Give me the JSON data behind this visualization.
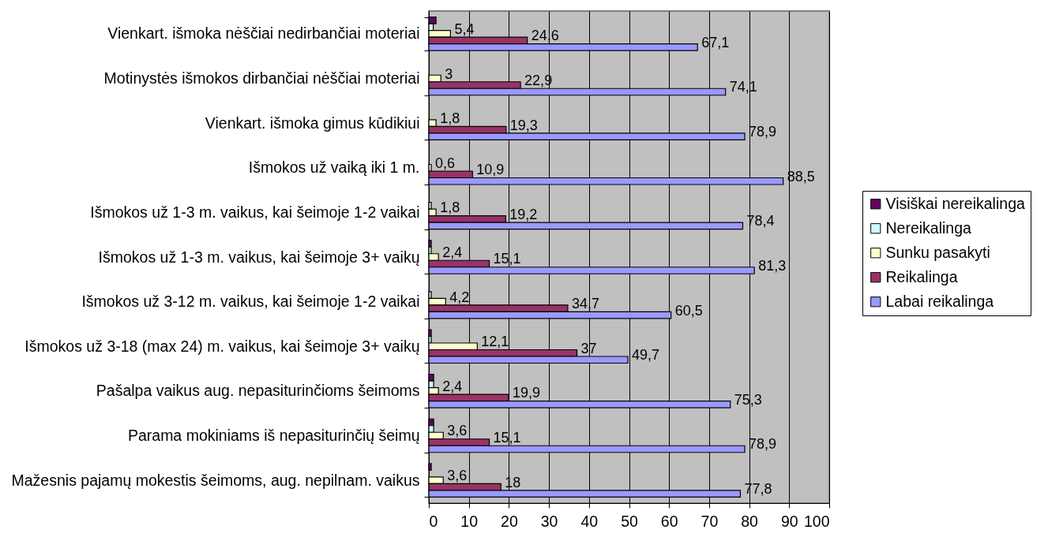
{
  "chart_data": {
    "type": "bar",
    "orientation": "horizontal",
    "categories": [
      "Vienkart. išmoka nėščiai nedirbančiai moteriai",
      "Motinystės išmokos dirbančiai nėščiai moteriai",
      "Vienkart. išmoka gimus kūdikiui",
      "Išmokos už vaiką iki 1 m.",
      "Išmokos už 1-3 m. vaikus, kai šeimoje 1-2 vaikai",
      "Išmokos už 1-3 m. vaikus, kai šeimoje 3+ vaikų",
      "Išmokos už 3-12 m. vaikus, kai šeimoje 1-2 vaikai",
      "Išmokos už 3-18 (max 24) m. vaikus, kai šeimoje 3+ vaikų",
      "Pašalpa vaikus aug. nepasiturinčioms šeimoms",
      "Parama mokiniams iš nepasiturinčių šeimų",
      "Mažesnis pajamų mokestis šeimoms, aug. nepilnam. vaikus"
    ],
    "series": [
      {
        "name": "Visiškai nereikalinga",
        "color": "#660066",
        "values": [
          1.8,
          0,
          0,
          0,
          0,
          0.6,
          0,
          0.6,
          1.2,
          1.2,
          0.6
        ]
      },
      {
        "name": "Nereikalinga",
        "color": "#ccffff",
        "values": [
          1.1,
          0,
          0,
          0,
          0.6,
          0.6,
          0.6,
          0.6,
          1.2,
          1.2,
          0
        ]
      },
      {
        "name": "Sunku pasakyti",
        "color": "#ffffcc",
        "values": [
          5.4,
          3,
          1.8,
          0.6,
          1.8,
          2.4,
          4.2,
          12.1,
          2.4,
          3.6,
          3.6
        ],
        "value_labels": [
          "5,4",
          "3",
          "1,8",
          "0,6",
          "1,8",
          "2,4",
          "4,2",
          "12,1",
          "2,4",
          "3,6",
          "3,6"
        ]
      },
      {
        "name": "Reikalinga",
        "color": "#993366",
        "values": [
          24.6,
          22.9,
          19.3,
          10.9,
          19.2,
          15.1,
          34.7,
          37,
          19.9,
          15.1,
          18
        ],
        "value_labels": [
          "24,6",
          "22,9",
          "19,3",
          "10,9",
          "19,2",
          "15,1",
          "34,7",
          "37",
          "19,9",
          "15,1",
          "18"
        ]
      },
      {
        "name": "Labai reikalinga",
        "color": "#9999ff",
        "values": [
          67.1,
          74.1,
          78.9,
          88.5,
          78.4,
          81.3,
          60.5,
          49.7,
          75.3,
          78.9,
          77.8
        ],
        "value_labels": [
          "67,1",
          "74,1",
          "78,9",
          "88,5",
          "78,4",
          "81,3",
          "60,5",
          "49,7",
          "75,3",
          "78,9",
          "77,8"
        ]
      }
    ],
    "xlim": [
      0,
      100
    ],
    "xticks": [
      0,
      10,
      20,
      30,
      40,
      50,
      60,
      70,
      80,
      90,
      100
    ],
    "grid": "x",
    "legend": "right"
  }
}
